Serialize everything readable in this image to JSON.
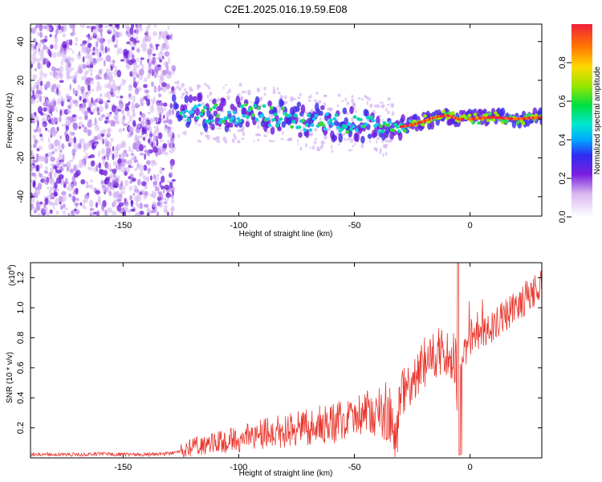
{
  "title": "C2E1.2025.016.19.59.E08",
  "chart_data": [
    {
      "type": "heatmap",
      "xlabel": "Height of straight line (km)",
      "ylabel": "Frequency (Hz)",
      "xlim": [
        -190,
        31
      ],
      "ylim": [
        -50,
        49
      ],
      "xticks": [
        -150,
        -100,
        -50,
        0
      ],
      "yticks": [
        -40,
        -20,
        0,
        20,
        40
      ],
      "colorbar": {
        "label": "Normalized spectral amplitude",
        "range": [
          0,
          1
        ],
        "ticks": [
          "0.0",
          "0.2",
          "0.4",
          "0.6",
          "0.8"
        ]
      },
      "ridge": {
        "x": [
          -125,
          -110,
          -100,
          -90,
          -80,
          -70,
          -60,
          -50,
          -45,
          -40,
          -35,
          -30,
          -25,
          -20,
          -15,
          -10,
          -5,
          0,
          10,
          20,
          31
        ],
        "y": [
          4,
          3,
          3,
          2,
          1,
          -1,
          -2,
          -2,
          -3,
          -4,
          -4,
          -4,
          -3,
          -1,
          1,
          2,
          0,
          0,
          1,
          0,
          1
        ]
      }
    },
    {
      "type": "line",
      "xlabel": "Height of straight line (km)",
      "ylabel": "SNR (10 * v/v)",
      "y_multiplier": "(x10",
      "y_multiplier_exp": "4",
      "y_multiplier_close": ")",
      "xlim": [
        -190,
        31
      ],
      "ylim": [
        0,
        1.3
      ],
      "xticks": [
        -150,
        -100,
        -50,
        0
      ],
      "yticks": [
        "0.2",
        "0.4",
        "0.6",
        "0.8",
        "1.0",
        "1.2"
      ],
      "color": "#e8372e",
      "series": [
        {
          "x": [
            -190,
            -180,
            -170,
            -160,
            -150,
            -140,
            -130,
            -125,
            -120,
            -110,
            -100,
            -90,
            -80,
            -70,
            -60,
            -55,
            -50,
            -45,
            -40,
            -35,
            -32,
            -30,
            -28,
            -25,
            -22,
            -20,
            -17,
            -15,
            -12,
            -10,
            -8,
            -6,
            -5,
            -4,
            -2,
            0,
            5,
            10,
            15,
            20,
            25,
            31
          ],
          "y": [
            0.02,
            0.025,
            0.02,
            0.025,
            0.02,
            0.02,
            0.025,
            0.04,
            0.06,
            0.08,
            0.11,
            0.14,
            0.16,
            0.18,
            0.2,
            0.22,
            0.24,
            0.26,
            0.28,
            0.22,
            0.1,
            0.35,
            0.45,
            0.5,
            0.55,
            0.6,
            0.62,
            0.66,
            0.7,
            0.66,
            0.64,
            0.6,
            0.02,
            0.62,
            0.7,
            0.76,
            0.8,
            0.86,
            0.92,
            0.98,
            1.05,
            1.12
          ]
        }
      ]
    }
  ]
}
